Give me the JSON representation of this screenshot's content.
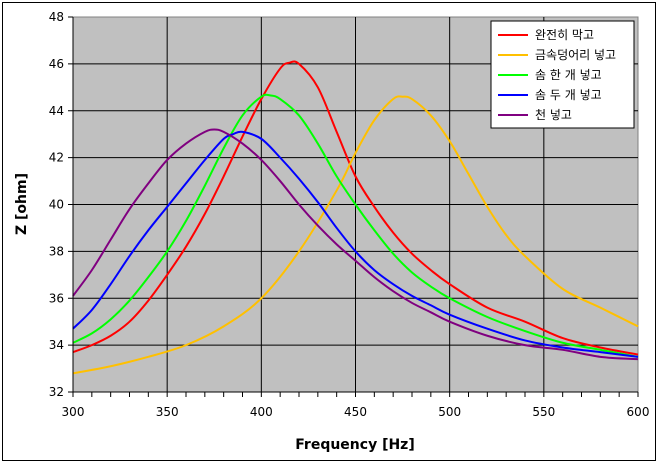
{
  "chart_data": {
    "type": "line",
    "title": "",
    "xlabel": "Frequency [Hz]",
    "ylabel": "Z [ohm]",
    "xlim": [
      300,
      600
    ],
    "ylim": [
      32,
      48
    ],
    "xticks": [
      300,
      350,
      400,
      450,
      500,
      550,
      600
    ],
    "yticks": [
      32,
      34,
      36,
      38,
      40,
      42,
      44,
      46,
      48
    ],
    "x_minor_step": 10,
    "grid": true,
    "legend_position": "top-right",
    "plot_background": "#c0c0c0",
    "series": [
      {
        "name": "완전히 막고",
        "color": "#ff0000",
        "x": [
          300,
          310,
          320,
          330,
          340,
          350,
          360,
          370,
          380,
          390,
          400,
          410,
          415,
          420,
          430,
          440,
          450,
          460,
          470,
          480,
          490,
          500,
          520,
          540,
          560,
          580,
          600
        ],
        "y": [
          33.7,
          34.0,
          34.4,
          35.0,
          35.9,
          37.0,
          38.2,
          39.6,
          41.2,
          42.9,
          44.5,
          45.8,
          46.05,
          46.0,
          45.0,
          43.1,
          41.2,
          39.9,
          38.8,
          37.9,
          37.2,
          36.6,
          35.6,
          35.0,
          34.3,
          33.9,
          33.6
        ]
      },
      {
        "name": "금속덩어리 넣고",
        "color": "#ffc000",
        "x": [
          300,
          320,
          340,
          360,
          380,
          400,
          420,
          440,
          450,
          460,
          470,
          475,
          480,
          490,
          500,
          510,
          520,
          530,
          540,
          560,
          580,
          600
        ],
        "y": [
          32.8,
          33.1,
          33.5,
          34.0,
          34.8,
          36.0,
          38.0,
          40.6,
          42.2,
          43.6,
          44.5,
          44.6,
          44.5,
          43.8,
          42.7,
          41.3,
          39.9,
          38.7,
          37.8,
          36.4,
          35.6,
          34.8
        ]
      },
      {
        "name": "솜 한 개 넣고",
        "color": "#00ff00",
        "x": [
          300,
          310,
          320,
          330,
          340,
          350,
          360,
          370,
          380,
          390,
          400,
          405,
          410,
          420,
          430,
          440,
          450,
          460,
          470,
          480,
          490,
          500,
          520,
          540,
          560,
          580,
          600
        ],
        "y": [
          34.1,
          34.5,
          35.1,
          35.9,
          36.9,
          38.0,
          39.3,
          40.8,
          42.4,
          43.8,
          44.6,
          44.65,
          44.5,
          43.8,
          42.6,
          41.2,
          40.0,
          38.9,
          37.9,
          37.1,
          36.5,
          36.0,
          35.2,
          34.6,
          34.1,
          33.8,
          33.5
        ]
      },
      {
        "name": "솜 두 개 넣고",
        "color": "#0000ff",
        "x": [
          300,
          310,
          320,
          330,
          340,
          350,
          360,
          370,
          380,
          385,
          390,
          400,
          410,
          420,
          430,
          440,
          450,
          460,
          470,
          480,
          490,
          500,
          520,
          540,
          560,
          580,
          600
        ],
        "y": [
          34.7,
          35.5,
          36.6,
          37.8,
          38.9,
          39.9,
          40.9,
          41.9,
          42.8,
          43.0,
          43.1,
          42.8,
          42.0,
          41.1,
          40.1,
          39.0,
          38.0,
          37.2,
          36.6,
          36.1,
          35.7,
          35.3,
          34.7,
          34.2,
          33.9,
          33.7,
          33.5
        ]
      },
      {
        "name": "천 넣고",
        "color": "#800080",
        "x": [
          300,
          310,
          320,
          330,
          340,
          350,
          360,
          370,
          375,
          380,
          390,
          400,
          410,
          420,
          430,
          440,
          450,
          460,
          470,
          480,
          490,
          500,
          520,
          540,
          560,
          580,
          600
        ],
        "y": [
          36.1,
          37.2,
          38.5,
          39.8,
          40.9,
          41.9,
          42.6,
          43.1,
          43.2,
          43.1,
          42.6,
          41.9,
          41.0,
          40.0,
          39.1,
          38.3,
          37.6,
          36.9,
          36.3,
          35.8,
          35.4,
          35.0,
          34.4,
          34.0,
          33.8,
          33.5,
          33.4
        ]
      }
    ]
  }
}
